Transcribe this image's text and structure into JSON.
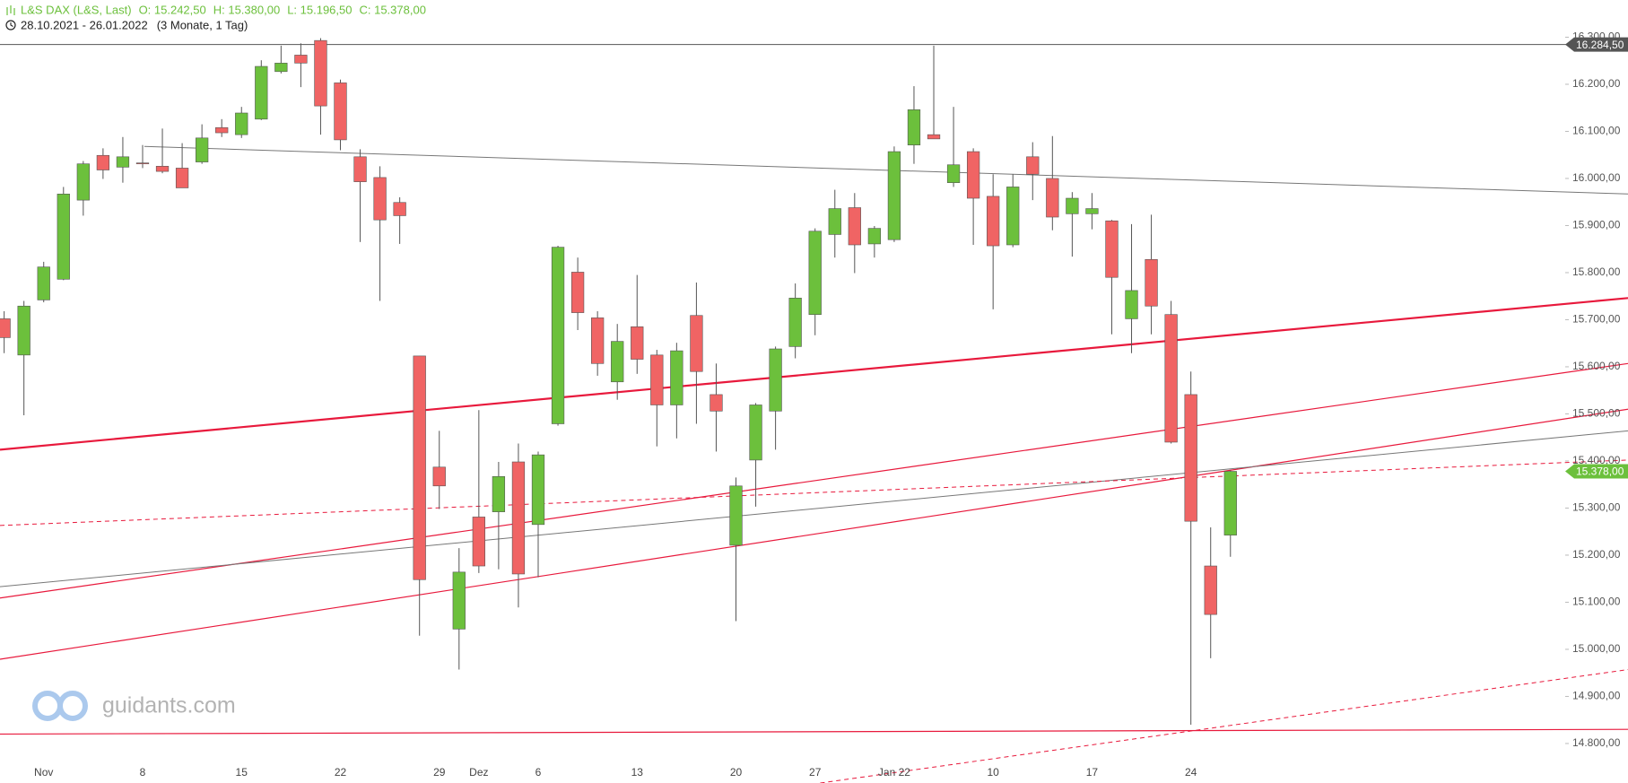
{
  "chart_data": {
    "type": "candlestick",
    "title": "L&S DAX (L&S, Last)",
    "stats": [
      "O: 15.242,50",
      "H: 15.380,00",
      "L: 15.196,50",
      "C: 15.378,00"
    ],
    "period": "28.10.2021 - 26.01.2022",
    "range": "(3 Monate, 1 Tag)",
    "watermark": "guidants.com",
    "categories": [
      null,
      null,
      "Nov",
      null,
      null,
      null,
      null,
      "8",
      null,
      null,
      null,
      null,
      "15",
      null,
      null,
      null,
      null,
      "22",
      null,
      null,
      null,
      null,
      "29",
      null,
      "Dez",
      null,
      null,
      "6",
      null,
      null,
      null,
      null,
      "13",
      null,
      null,
      null,
      null,
      "20",
      null,
      null,
      null,
      "27",
      null,
      null,
      null,
      "Jan 22",
      null,
      null,
      null,
      null,
      "10",
      null,
      null,
      null,
      null,
      "17",
      null,
      null,
      null,
      null,
      "24",
      null,
      null
    ],
    "open": [
      15702,
      15625,
      15742,
      15786,
      15954,
      16049,
      16024,
      16033,
      16026,
      16022,
      16035,
      16108,
      16093,
      16126,
      16227,
      16262,
      16293,
      16203,
      16046,
      16002,
      15949,
      15623,
      15387,
      15043,
      15281,
      15292,
      15398,
      15265,
      15479,
      15801,
      15704,
      15568,
      15685,
      15625,
      15519,
      15709,
      15541,
      15221,
      15402,
      15506,
      15643,
      15711,
      15881,
      15938,
      15861,
      15870,
      16071,
      16093,
      15991,
      16057,
      15962,
      15859,
      16046,
      16000,
      15925,
      15925,
      15910,
      15702,
      15828,
      15711,
      15541,
      15177,
      15242.5
    ],
    "high": [
      15718,
      15740,
      15823,
      15982,
      16037,
      16064,
      16088,
      16071,
      16106,
      16075,
      16115,
      16126,
      16152,
      16251,
      16282,
      16287,
      16298,
      16210,
      16062,
      16026,
      15960,
      15623,
      15464,
      15215,
      15508,
      15398,
      15437,
      15420,
      15857,
      15832,
      15718,
      15691,
      15795,
      15636,
      15651,
      15779,
      15607,
      15365,
      15523,
      15643,
      15777,
      15894,
      15976,
      15969,
      15899,
      16068,
      16196,
      16282,
      16152,
      16064,
      16009,
      16009,
      16077,
      16090,
      15971,
      15969,
      15912,
      15903,
      15923,
      15740,
      15590,
      15259,
      15380
    ],
    "low": [
      15629,
      15497,
      15737,
      15784,
      15921,
      15999,
      15991,
      16022,
      16011,
      15980,
      16031,
      16088,
      16086,
      16124,
      16223,
      16194,
      16093,
      16060,
      15865,
      15740,
      15861,
      15029,
      15298,
      14957,
      15162,
      15170,
      15089,
      15153,
      15475,
      15678,
      15581,
      15530,
      15585,
      15431,
      15448,
      15479,
      15420,
      15060,
      15303,
      15424,
      15618,
      15667,
      15832,
      15799,
      15832,
      15865,
      16031,
      16084,
      15982,
      15859,
      15722,
      15854,
      15954,
      15890,
      15834,
      15892,
      15669,
      15629,
      15669,
      15437,
      14840,
      14981,
      15196.5
    ],
    "close": [
      15662,
      15729,
      15812,
      15967,
      16031,
      16018,
      16046,
      16031,
      16015,
      15980,
      16086,
      16097,
      16139,
      16238,
      16245,
      16245,
      16154,
      16082,
      15993,
      15912,
      15921,
      15148,
      15347,
      15164,
      15177,
      15367,
      15160,
      15413,
      15854,
      15715,
      15607,
      15654,
      15616,
      15519,
      15634,
      15590,
      15506,
      15347,
      15519,
      15638,
      15746,
      15888,
      15936,
      15859,
      15894,
      16057,
      16146,
      16084,
      16029,
      15958,
      15857,
      15982,
      16009,
      15918,
      15958,
      15936,
      15790,
      15762,
      15729,
      15440,
      15272,
      15074,
      15378
    ],
    "up_color": "#6cc03c",
    "down_color": "#f06464",
    "xlim": [
      -0.21,
      82.1
    ],
    "ylim": [
      14758,
      16379
    ],
    "yticks": [
      {
        "value": 14800,
        "label": "14.800,00"
      },
      {
        "value": 14900,
        "label": "14.900,00"
      },
      {
        "value": 15000,
        "label": "15.000,00"
      },
      {
        "value": 15100,
        "label": "15.100,00"
      },
      {
        "value": 15200,
        "label": "15.200,00"
      },
      {
        "value": 15300,
        "label": "15.300,00"
      },
      {
        "value": 15400,
        "label": "15.400,00"
      },
      {
        "value": 15500,
        "label": "15.500,00"
      },
      {
        "value": 15600,
        "label": "15.600,00"
      },
      {
        "value": 15700,
        "label": "15.700,00"
      },
      {
        "value": 15800,
        "label": "15.800,00"
      },
      {
        "value": 15900,
        "label": "15.900,00"
      },
      {
        "value": 16000,
        "label": "16.000,00"
      },
      {
        "value": 16100,
        "label": "16.100,00"
      },
      {
        "value": 16200,
        "label": "16.200,00"
      },
      {
        "value": 16300,
        "label": "16.300,00"
      }
    ],
    "grid": false,
    "lines": [
      {
        "x1": -0.21,
        "y1": 16284.5,
        "x2": 82.1,
        "y2": 16284.5,
        "color": "#555555",
        "width": 1,
        "dash": false
      },
      {
        "x1": 7.09,
        "y1": 16068,
        "x2": 82.1,
        "y2": 15967,
        "color": "#777777",
        "width": 1,
        "dash": false
      },
      {
        "x1": -0.21,
        "y1": 15424,
        "x2": 82.1,
        "y2": 15746,
        "color": "#e8193c",
        "width": 2.2,
        "dash": false
      },
      {
        "x1": -0.21,
        "y1": 15109,
        "x2": 82.1,
        "y2": 15607,
        "color": "#e8193c",
        "width": 1.2,
        "dash": false
      },
      {
        "x1": -0.21,
        "y1": 14979,
        "x2": 82.1,
        "y2": 15510,
        "color": "#e8193c",
        "width": 1.2,
        "dash": false
      },
      {
        "x1": -0.21,
        "y1": 15133,
        "x2": 82.1,
        "y2": 15464,
        "color": "#777777",
        "width": 1,
        "dash": false
      },
      {
        "x1": -0.21,
        "y1": 15263,
        "x2": 82.1,
        "y2": 15402,
        "color": "#e8193c",
        "width": 1,
        "dash": true
      },
      {
        "x1": 41.26,
        "y1": 14716,
        "x2": 82.1,
        "y2": 14957,
        "color": "#e8193c",
        "width": 1,
        "dash": true
      },
      {
        "x1": -0.21,
        "y1": 14820,
        "x2": 82.1,
        "y2": 14830,
        "color": "#e8193c",
        "width": 1.2,
        "dash": false
      }
    ],
    "price_markers": [
      {
        "value": 16284.5,
        "label": "16.284,50",
        "color": "#555555"
      },
      {
        "value": 15378,
        "label": "15.378,00",
        "color": "#6cc03c"
      }
    ]
  }
}
